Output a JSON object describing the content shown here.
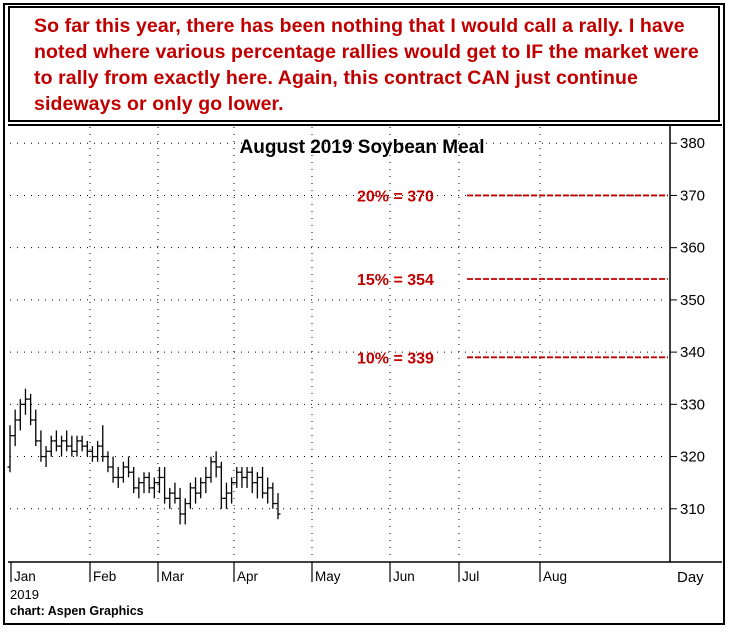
{
  "note": "So far this year, there has been nothing that I would call a rally. I have noted where various percentage rallies would get to IF the market were to rally from exactly here. Again, this contract CAN just continue sideways or only go lower.",
  "footer": {
    "year": "2019",
    "source": "chart: Aspen Graphics"
  },
  "chart_data": {
    "type": "ohlc",
    "title": "August 2019 Soybean Meal",
    "ylim": [
      300,
      381
    ],
    "y_ticks": [
      310,
      320,
      330,
      340,
      350,
      360,
      370,
      380
    ],
    "x_unit_label": "Day",
    "months": [
      "Jan",
      "Feb",
      "Mar",
      "Apr",
      "May",
      "Jun",
      "Jul",
      "Aug"
    ],
    "grid": true,
    "price_axis": "right",
    "colors": {
      "annotation": "#c00000",
      "bars": "#000000",
      "grid": "#000000"
    },
    "annotations": [
      {
        "label": "20% = 370",
        "value": 370
      },
      {
        "label": "15% = 354",
        "value": 354
      },
      {
        "label": "10% = 339",
        "value": 339
      }
    ],
    "bars": [
      [
        318,
        326,
        317,
        324
      ],
      [
        324,
        329,
        322,
        327
      ],
      [
        327,
        331,
        325,
        330
      ],
      [
        330,
        333,
        328,
        331
      ],
      [
        331,
        332,
        326,
        327
      ],
      [
        327,
        329,
        322,
        323
      ],
      [
        323,
        325,
        319,
        320
      ],
      [
        320,
        322,
        318,
        321
      ],
      [
        321,
        324,
        320,
        323
      ],
      [
        323,
        325,
        321,
        322
      ],
      [
        322,
        324,
        320,
        323
      ],
      [
        323,
        325,
        321,
        322
      ],
      [
        322,
        324,
        320,
        321
      ],
      [
        321,
        324,
        320,
        323
      ],
      [
        323,
        324,
        321,
        322
      ],
      [
        322,
        323,
        320,
        321
      ],
      [
        321,
        322,
        319,
        320
      ],
      [
        320,
        323,
        319,
        322
      ],
      [
        322,
        326,
        319,
        320
      ],
      [
        320,
        321,
        317,
        318
      ],
      [
        318,
        320,
        315,
        316
      ],
      [
        316,
        318,
        314,
        316
      ],
      [
        316,
        319,
        315,
        318
      ],
      [
        318,
        320,
        316,
        317
      ],
      [
        317,
        318,
        313,
        314
      ],
      [
        314,
        316,
        312,
        315
      ],
      [
        315,
        317,
        313,
        316
      ],
      [
        316,
        317,
        313,
        314
      ],
      [
        314,
        316,
        312,
        315
      ],
      [
        315,
        318,
        313,
        316
      ],
      [
        316,
        318,
        311,
        312
      ],
      [
        312,
        314,
        310,
        313
      ],
      [
        313,
        315,
        311,
        312
      ],
      [
        312,
        314,
        307,
        309
      ],
      [
        309,
        312,
        307,
        311
      ],
      [
        311,
        315,
        310,
        314
      ],
      [
        314,
        316,
        311,
        313
      ],
      [
        313,
        316,
        312,
        315
      ],
      [
        315,
        318,
        313,
        316
      ],
      [
        316,
        320,
        315,
        319
      ],
      [
        319,
        321,
        316,
        318
      ],
      [
        318,
        319,
        310,
        312
      ],
      [
        312,
        315,
        310,
        313
      ],
      [
        313,
        316,
        311,
        315
      ],
      [
        315,
        318,
        314,
        317
      ],
      [
        317,
        318,
        314,
        316
      ],
      [
        316,
        318,
        314,
        317
      ],
      [
        317,
        318,
        313,
        315
      ],
      [
        315,
        317,
        312,
        316
      ],
      [
        316,
        318,
        312,
        313
      ],
      [
        313,
        316,
        311,
        314
      ],
      [
        314,
        315,
        310,
        311
      ],
      [
        311,
        313,
        308,
        309
      ]
    ]
  }
}
